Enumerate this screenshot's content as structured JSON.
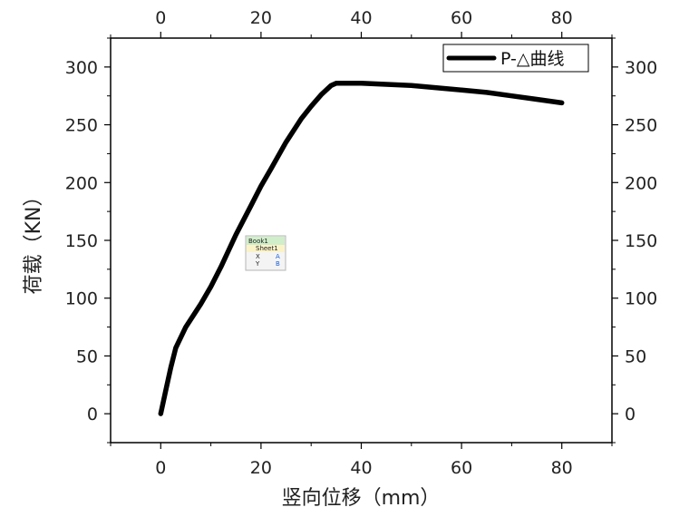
{
  "chart_data": {
    "type": "line",
    "title": "",
    "xlabel": "竖向位移（mm）",
    "ylabel": "荷载（KN）",
    "xlim": [
      -10,
      90
    ],
    "ylim": [
      -25,
      325
    ],
    "x_ticks": [
      0,
      20,
      40,
      60,
      80
    ],
    "y_ticks": [
      0,
      50,
      100,
      150,
      200,
      250,
      300
    ],
    "top_axis_labels": true,
    "right_axis_labels": true,
    "grid": false,
    "legend_position": "top-right",
    "series": [
      {
        "name": "P-△曲线",
        "color": "#000000",
        "x": [
          0,
          1,
          2,
          3,
          5,
          8,
          10,
          12,
          15,
          18,
          20,
          22,
          25,
          28,
          30,
          32,
          34,
          35,
          36,
          38,
          40,
          45,
          50,
          55,
          60,
          65,
          70,
          75,
          80
        ],
        "y": [
          0,
          20,
          40,
          57,
          75,
          95,
          110,
          127,
          155,
          180,
          197,
          212,
          235,
          255,
          266,
          276,
          284,
          286,
          286,
          286,
          286,
          285,
          284,
          282,
          280,
          278,
          275,
          272,
          269
        ]
      }
    ]
  },
  "badge": {
    "book": "Book1",
    "sheet": "Sheet1",
    "row_x": "X",
    "row_y": "Y",
    "col_a": "A",
    "col_b": "B"
  }
}
